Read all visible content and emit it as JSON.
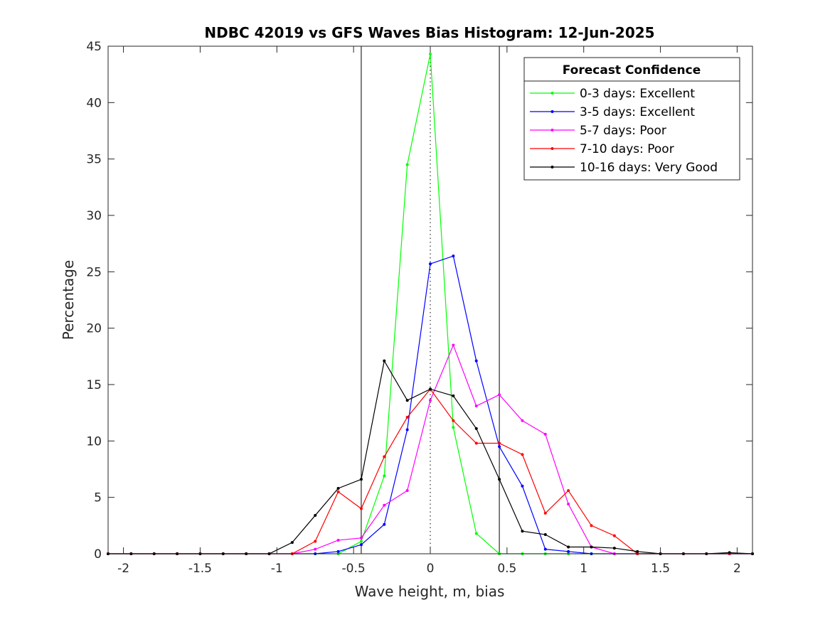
{
  "chart_data": {
    "type": "line",
    "title": "NDBC 42019 vs GFS Waves Bias Histogram: 12-Jun-2025",
    "xlabel": "Wave height, m, bias",
    "ylabel": "Percentage",
    "xlim": [
      -2.1,
      2.1
    ],
    "ylim": [
      0,
      45
    ],
    "xticks": [
      -2,
      -1.5,
      -1,
      -0.5,
      0,
      0.5,
      1,
      1.5,
      2
    ],
    "xtick_labels": [
      "-2",
      "-1.5",
      "-1",
      "-0.5",
      "0",
      "0.5",
      "1",
      "1.5",
      "2"
    ],
    "yticks": [
      0,
      5,
      10,
      15,
      20,
      25,
      30,
      35,
      40,
      45
    ],
    "ytick_labels": [
      "0",
      "5",
      "10",
      "15",
      "20",
      "25",
      "30",
      "35",
      "40",
      "45"
    ],
    "grid": false,
    "reference_lines": {
      "solid": [
        -0.45,
        0.45
      ],
      "dotted": [
        0
      ]
    },
    "legend": {
      "title": "Forecast Confidence",
      "location": "top-right"
    },
    "x": [
      -2.1,
      -1.95,
      -1.8,
      -1.65,
      -1.5,
      -1.35,
      -1.2,
      -1.05,
      -0.9,
      -0.75,
      -0.6,
      -0.45,
      -0.3,
      -0.15,
      0,
      0.15,
      0.3,
      0.45,
      0.6,
      0.75,
      0.9,
      1.05,
      1.2,
      1.35,
      1.5,
      1.65,
      1.8,
      1.95,
      2.1
    ],
    "series": [
      {
        "name": "0-3 days: Excellent",
        "color": "#00ff00",
        "values": [
          0,
          0,
          0,
          0,
          0,
          0,
          0,
          0,
          0,
          0,
          0,
          1.1,
          6.9,
          34.5,
          44.3,
          11.2,
          1.8,
          0,
          0,
          0,
          0,
          0,
          0,
          0,
          0,
          0,
          0,
          0,
          0
        ]
      },
      {
        "name": "3-5 days: Excellent",
        "color": "#0000ff",
        "values": [
          0,
          0,
          0,
          0,
          0,
          0,
          0,
          0,
          0,
          0,
          0.2,
          0.8,
          2.6,
          11.0,
          25.7,
          26.4,
          17.1,
          9.5,
          6.0,
          0.4,
          0.2,
          0,
          0,
          0,
          0,
          0,
          0,
          0,
          0
        ]
      },
      {
        "name": "5-7 days: Poor",
        "color": "#ff00ff",
        "values": [
          0,
          0,
          0,
          0,
          0,
          0,
          0,
          0,
          0,
          0.4,
          1.2,
          1.4,
          4.3,
          5.6,
          13.6,
          18.5,
          13.1,
          14.1,
          11.8,
          10.6,
          4.4,
          0.6,
          0,
          0,
          0,
          0,
          0,
          0,
          0
        ]
      },
      {
        "name": "7-10 days: Poor",
        "color": "#ff0000",
        "values": [
          0,
          0,
          0,
          0,
          0,
          0,
          0,
          0,
          0,
          1.1,
          5.5,
          4.0,
          8.6,
          12.1,
          14.6,
          11.8,
          9.8,
          9.8,
          8.8,
          3.6,
          5.6,
          2.5,
          1.6,
          0,
          0,
          0,
          0,
          0,
          0
        ]
      },
      {
        "name": "10-16 days: Very Good",
        "color": "#000000",
        "values": [
          0,
          0,
          0,
          0,
          0,
          0,
          0,
          0,
          1.0,
          3.4,
          5.8,
          6.6,
          17.1,
          13.6,
          14.6,
          14.0,
          11.1,
          6.6,
          2.0,
          1.7,
          0.6,
          0.6,
          0.5,
          0.2,
          0,
          0,
          0,
          0.1,
          0
        ]
      }
    ]
  }
}
